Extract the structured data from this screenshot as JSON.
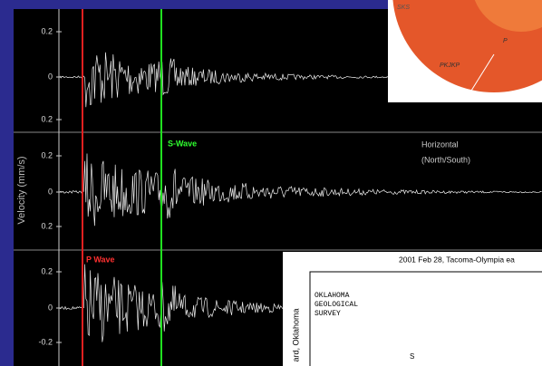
{
  "y_axis_label": "Velocity (mm/s)",
  "panels": [
    {
      "ticks": [
        "0.2",
        "0",
        "0.2"
      ]
    },
    {
      "ticks": [
        "0.2",
        "0",
        "0.2"
      ],
      "label": [
        "Horizontal",
        "(North/South)"
      ]
    },
    {
      "ticks": [
        "0.2",
        "0",
        "-0.2"
      ]
    }
  ],
  "markers": {
    "s_wave": "S-Wave",
    "p_wave": "P Wave"
  },
  "earth_inset": {
    "labels": [
      "SKS",
      "PKJKP",
      "P"
    ]
  },
  "record_inset": {
    "title": "2001 Feb 28, Tacoma-Olympia ea",
    "station": [
      "OKLAHOMA",
      "GEOLOGICAL",
      "SURVEY"
    ],
    "side_label": "ard, Oklahoma",
    "phase": "S"
  }
}
